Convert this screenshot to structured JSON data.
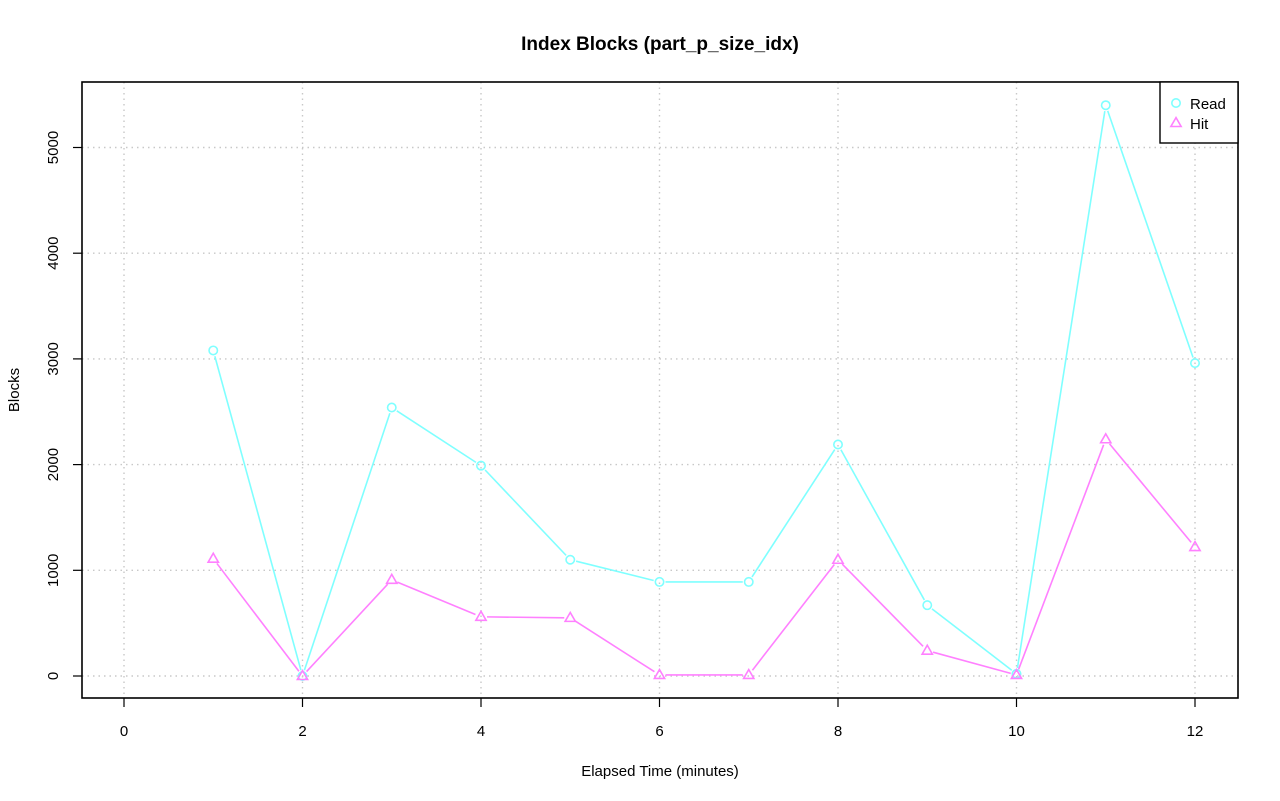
{
  "chart_data": {
    "type": "line",
    "title": "Index Blocks (part_p_size_idx)",
    "xlabel": "Elapsed Time (minutes)",
    "ylabel": "Blocks",
    "xlim": [
      0,
      12
    ],
    "ylim": [
      0,
      5400
    ],
    "x_ticks": [
      0,
      2,
      4,
      6,
      8,
      10,
      12
    ],
    "y_ticks": [
      0,
      1000,
      2000,
      3000,
      4000,
      5000
    ],
    "grid": true,
    "legend_position": "top-right",
    "x": [
      1,
      2,
      3,
      4,
      5,
      6,
      7,
      8,
      9,
      10,
      11,
      12
    ],
    "series": [
      {
        "name": "Read",
        "marker": "circle",
        "color": "#7fffff",
        "values": [
          3080,
          0,
          2540,
          1990,
          1100,
          890,
          890,
          2190,
          670,
          20,
          5400,
          2960
        ]
      },
      {
        "name": "Hit",
        "marker": "triangle",
        "color": "#ff80ff",
        "values": [
          1110,
          0,
          910,
          560,
          550,
          10,
          10,
          1100,
          240,
          10,
          2240,
          1220
        ]
      }
    ]
  }
}
